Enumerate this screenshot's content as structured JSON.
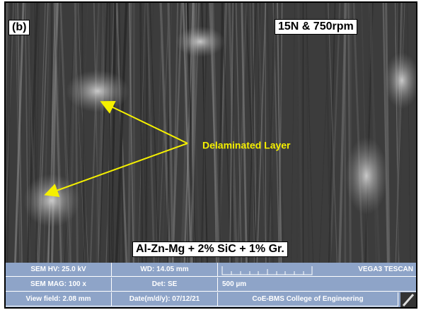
{
  "panel_label": "(b)",
  "condition": "15N & 750rpm",
  "annotation": "Delaminated Layer",
  "material": "Al-Zn-Mg + 2% SiC + 1% Gr.",
  "info_bar": {
    "rows": [
      [
        "SEM HV: 25.0 kV",
        "WD: 14.05 mm",
        "VEGA3 TESCAN"
      ],
      [
        "SEM MAG: 100 x",
        "Det: SE",
        "500 µm"
      ],
      [
        "View field: 2.08 mm",
        "Date(m/d/y): 07/12/21",
        "CoE-BMS College of Engineering"
      ]
    ]
  }
}
